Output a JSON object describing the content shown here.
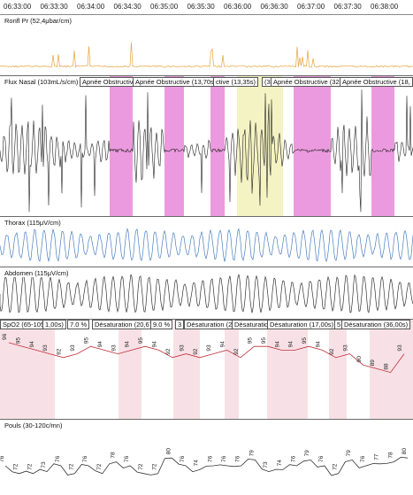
{
  "time_axis": {
    "ticks": [
      "06:33:00",
      "06:33:30",
      "06:34:00",
      "06:34:30",
      "06:35:00",
      "06:35:30",
      "06:36:00",
      "06:36:30",
      "06:37:00",
      "06:37:30",
      "06:38:00"
    ]
  },
  "channels": {
    "snore": {
      "label": "Ronfl Pr (52,4μbar/cm)",
      "color": "#e8a33a"
    },
    "nasal_flow": {
      "label": "Flux Nasal (103mL/s/cm)",
      "color": "#222222",
      "events": [
        "Apnée Obstructive",
        "Apnée Obstructive (13,70s)",
        "ctive (13,35s)",
        "(3",
        "Apnée Obstructive (32,",
        "Apnée Obstructive (18,"
      ]
    },
    "thorax": {
      "label": "Thorax (115μV/cm)",
      "color": "#4a7fc1"
    },
    "abdomen": {
      "label": "Abdomen (115μV/cm)",
      "color": "#333333"
    },
    "spo2": {
      "label": "SpO2 (65-105%)",
      "color": "#c0303a",
      "events": [
        "1,00s)",
        "7.0 %",
        "Désaturation (20,67s)",
        "9.0 %",
        "3",
        "Désaturation (2",
        "Désaturatio",
        "Désaturation (17,00s)",
        "5",
        "Désaturation (36,00s)"
      ],
      "values": [
        "96",
        "95",
        "94",
        "93",
        "92",
        "93",
        "95",
        "94",
        "93",
        "94",
        "95",
        "94",
        "92",
        "93",
        "92",
        "93",
        "94",
        "92",
        "95",
        "95",
        "94",
        "94",
        "95",
        "94",
        "92",
        "93",
        "90",
        "89",
        "88",
        "93"
      ]
    },
    "pulse": {
      "label": "Pouls (30-120c/mn)",
      "color": "#333333",
      "values": [
        "76",
        "72",
        "72",
        "73",
        "76",
        "72",
        "76",
        "72",
        "78",
        "76",
        "72",
        "72",
        "80",
        "76",
        "74",
        "76",
        "76",
        "76",
        "79",
        "73",
        "74",
        "76",
        "79",
        "76",
        "72",
        "79",
        "76",
        "77",
        "78",
        "80"
      ]
    }
  }
}
